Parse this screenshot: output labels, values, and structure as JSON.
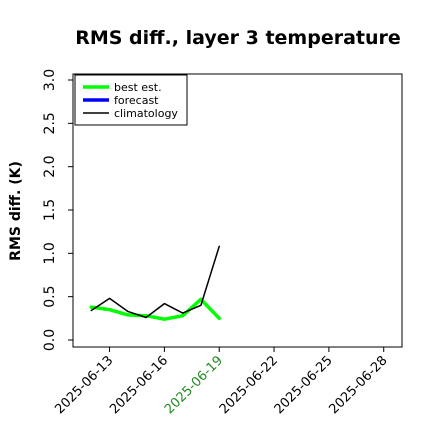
{
  "chart_data": {
    "type": "line",
    "title": "RMS diff., layer 3 temperature",
    "xlabel": "",
    "ylabel": "RMS diff. (K)",
    "ylim": [
      0.0,
      3.2
    ],
    "y_ticks": [
      "0.0",
      "0.5",
      "1.0",
      "1.5",
      "2.0",
      "2.5",
      "3.0"
    ],
    "y_tick_values": [
      0.0,
      0.5,
      1.0,
      1.5,
      2.0,
      2.5,
      3.0
    ],
    "xlim": [
      "2025-06-11",
      "2025-06-29"
    ],
    "x_ticks": [
      "2025-06-13",
      "2025-06-16",
      "2025-06-19",
      "2025-06-22",
      "2025-06-25",
      "2025-06-28"
    ],
    "highlight_tick": "2025-06-19",
    "highlight_color": "#228b22",
    "grid": false,
    "legend_position": "top-left",
    "series": [
      {
        "name": "best est.",
        "color": "#00ff00",
        "x": [
          "2025-06-12",
          "2025-06-13",
          "2025-06-14",
          "2025-06-15",
          "2025-06-16",
          "2025-06-17",
          "2025-06-18",
          "2025-06-19"
        ],
        "values": [
          0.38,
          0.35,
          0.29,
          0.28,
          0.24,
          0.28,
          0.47,
          0.25
        ]
      },
      {
        "name": "forecast",
        "color": "#0000ff",
        "x": [],
        "values": []
      },
      {
        "name": "climatology",
        "color": "#000000",
        "x": [
          "2025-06-12",
          "2025-06-13",
          "2025-06-14",
          "2025-06-15",
          "2025-06-16",
          "2025-06-17",
          "2025-06-18",
          "2025-06-19"
        ],
        "values": [
          0.34,
          0.48,
          0.33,
          0.26,
          0.42,
          0.31,
          0.4,
          1.08
        ]
      }
    ]
  }
}
